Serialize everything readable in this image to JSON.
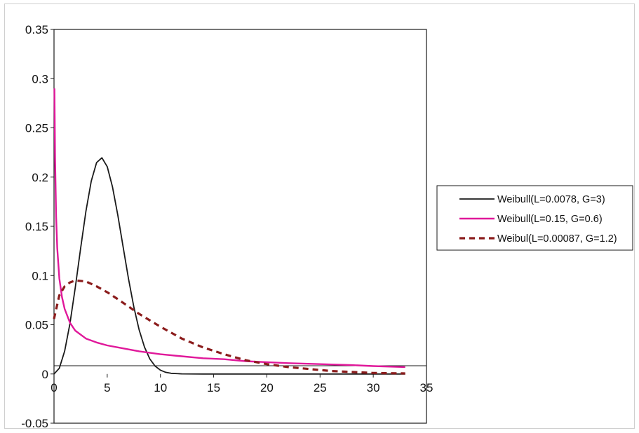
{
  "chart_data": {
    "type": "line",
    "title": "",
    "xlabel": "",
    "ylabel": "",
    "xlim": [
      0,
      35
    ],
    "ylim": [
      -0.05,
      0.35
    ],
    "x_ticks": [
      "0",
      "5",
      "10",
      "15",
      "20",
      "25",
      "30",
      "35"
    ],
    "y_ticks": [
      "0.35",
      "0.3",
      "0.25",
      "0.2",
      "0.15",
      "0.1",
      "0.05",
      "0",
      "-0.05"
    ],
    "grid": false,
    "legend_position": "right",
    "series": [
      {
        "name": "Weibull(L=0.0078, G=3)",
        "color": "#1a1a1a",
        "style": "solid",
        "x": [
          0,
          0.5,
          1,
          1.5,
          2,
          2.5,
          3,
          3.5,
          4,
          4.5,
          5,
          5.5,
          6,
          6.5,
          7,
          7.5,
          8,
          8.5,
          9,
          9.5,
          10,
          10.5,
          11,
          12,
          14,
          16,
          18,
          20,
          22,
          24,
          26,
          28,
          30,
          32,
          33
        ],
        "y": [
          0,
          0.0059,
          0.0233,
          0.0515,
          0.0877,
          0.1274,
          0.1653,
          0.1959,
          0.2148,
          0.2196,
          0.2106,
          0.1899,
          0.1612,
          0.1288,
          0.0967,
          0.0681,
          0.0447,
          0.0273,
          0.0154,
          0.008,
          0.0039,
          0.0017,
          0.0007,
          0.0001,
          0,
          0,
          0,
          0,
          0,
          0,
          0,
          0,
          0,
          0,
          0
        ]
      },
      {
        "name": "Weibull(L=0.15, G=0.6)",
        "color": "#e0189a",
        "style": "solid",
        "x": [
          0.04,
          0.1,
          0.2,
          0.3,
          0.5,
          0.75,
          1,
          1.5,
          2,
          3,
          4,
          5,
          6,
          8,
          10,
          12,
          14,
          16,
          18,
          20,
          22,
          25,
          28,
          30,
          33
        ],
        "y": [
          0.29,
          0.22,
          0.16,
          0.128,
          0.097,
          0.078,
          0.066,
          0.052,
          0.044,
          0.036,
          0.032,
          0.029,
          0.027,
          0.023,
          0.02,
          0.018,
          0.016,
          0.015,
          0.013,
          0.012,
          0.011,
          0.01,
          0.009,
          0.008,
          0.007
        ]
      },
      {
        "name": "Weibul(L=0.00087, G=1.2)",
        "color": "#8b1c1c",
        "style": "dashed",
        "x": [
          0,
          0.5,
          1,
          1.5,
          2,
          3,
          4,
          5,
          6,
          8,
          10,
          12,
          14,
          16,
          18,
          20,
          22,
          24,
          26,
          28,
          30,
          33
        ],
        "y": [
          0.056,
          0.08,
          0.089,
          0.093,
          0.095,
          0.094,
          0.089,
          0.083,
          0.076,
          0.061,
          0.048,
          0.036,
          0.027,
          0.02,
          0.014,
          0.01,
          0.007,
          0.005,
          0.003,
          0.002,
          0.001,
          0.0005
        ]
      }
    ]
  }
}
